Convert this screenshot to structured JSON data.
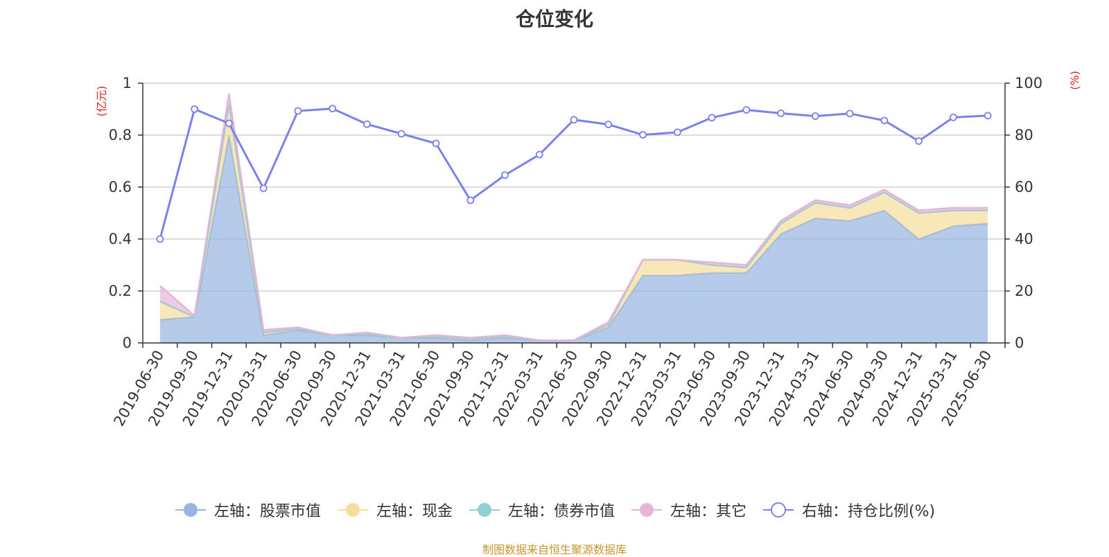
{
  "title": "仓位变化",
  "source_note": "制图数据来自恒生聚源数据库",
  "left_unit": "(亿元)",
  "right_unit": "(%)",
  "colors": {
    "stock": "#97b5e0",
    "cash": "#f5dd9a",
    "bond": "#8fd1d1",
    "other": "#e3b6d9",
    "ratio": "#7b80ee",
    "unit_text": "#e02020",
    "source": "#c8962e"
  },
  "legend": [
    {
      "key": "stock",
      "label": "左轴：股票市值",
      "icon": "filled-circle-icon"
    },
    {
      "key": "cash",
      "label": "左轴：现金",
      "icon": "filled-circle-icon"
    },
    {
      "key": "bond",
      "label": "左轴：债券市值",
      "icon": "filled-circle-icon"
    },
    {
      "key": "other",
      "label": "左轴：其它",
      "icon": "filled-circle-icon"
    },
    {
      "key": "ratio",
      "label": "右轴：持仓比例(%)",
      "icon": "hollow-circle-icon"
    }
  ],
  "chart_data": {
    "type": "area",
    "title": "仓位变化",
    "categories": [
      "2019-06-30",
      "2019-09-30",
      "2019-12-31",
      "2020-03-31",
      "2020-06-30",
      "2020-09-30",
      "2020-12-31",
      "2021-03-31",
      "2021-06-30",
      "2021-09-30",
      "2021-12-31",
      "2022-03-31",
      "2022-06-30",
      "2022-09-30",
      "2022-12-31",
      "2023-03-31",
      "2023-06-30",
      "2023-09-30",
      "2023-12-31",
      "2024-03-31",
      "2024-06-30",
      "2024-09-30",
      "2024-12-31",
      "2025-03-31",
      "2025-06-30"
    ],
    "y_left": {
      "label": "(亿元)",
      "ylim": [
        0,
        1
      ],
      "ticks": [
        "0",
        "0.2",
        "0.4",
        "0.6",
        "0.8",
        "1"
      ]
    },
    "y_right": {
      "label": "(%)",
      "ylim": [
        0,
        100
      ],
      "ticks": [
        "0",
        "20",
        "40",
        "60",
        "80",
        "100"
      ]
    },
    "grid": true,
    "legend_position": "bottom",
    "stacked_series": [
      {
        "key": "stock",
        "name": "左轴：股票市值",
        "axis": "left",
        "values": [
          0.09,
          0.1,
          0.8,
          0.03,
          0.05,
          0.03,
          0.03,
          0.02,
          0.02,
          0.01,
          0.02,
          0.01,
          0.01,
          0.06,
          0.26,
          0.26,
          0.27,
          0.27,
          0.42,
          0.48,
          0.47,
          0.51,
          0.4,
          0.45,
          0.46
        ]
      },
      {
        "key": "cash",
        "name": "左轴：现金",
        "axis": "left",
        "values": [
          0.07,
          0.0,
          0.12,
          0.01,
          0.005,
          0.0,
          0.005,
          0.0,
          0.005,
          0.005,
          0.005,
          0.0,
          0.0,
          0.01,
          0.06,
          0.06,
          0.03,
          0.02,
          0.04,
          0.06,
          0.05,
          0.07,
          0.1,
          0.06,
          0.05
        ]
      },
      {
        "key": "bond",
        "name": "左轴：债券市值",
        "axis": "left",
        "values": [
          0,
          0,
          0,
          0,
          0,
          0,
          0,
          0,
          0,
          0,
          0,
          0,
          0,
          0,
          0,
          0,
          0,
          0,
          0,
          0,
          0,
          0,
          0,
          0,
          0
        ]
      },
      {
        "key": "other",
        "name": "左轴：其它",
        "axis": "left",
        "values": [
          0.06,
          0.005,
          0.04,
          0.01,
          0.005,
          0.0,
          0.005,
          0.0,
          0.005,
          0.005,
          0.005,
          0.0,
          0.0,
          0.01,
          0.0,
          0.0,
          0.01,
          0.01,
          0.01,
          0.01,
          0.01,
          0.01,
          0.01,
          0.01,
          0.01
        ]
      }
    ],
    "line_series": {
      "key": "ratio",
      "name": "右轴：持仓比例(%)",
      "axis": "right",
      "values": [
        40,
        90,
        84.5,
        59.5,
        89.3,
        90.2,
        84.2,
        80.5,
        76.8,
        54.9,
        64.6,
        72.5,
        85.9,
        84.1,
        80.1,
        81.1,
        86.7,
        89.7,
        88.4,
        87.3,
        88.3,
        85.6,
        77.7,
        86.8,
        87.5
      ]
    }
  }
}
